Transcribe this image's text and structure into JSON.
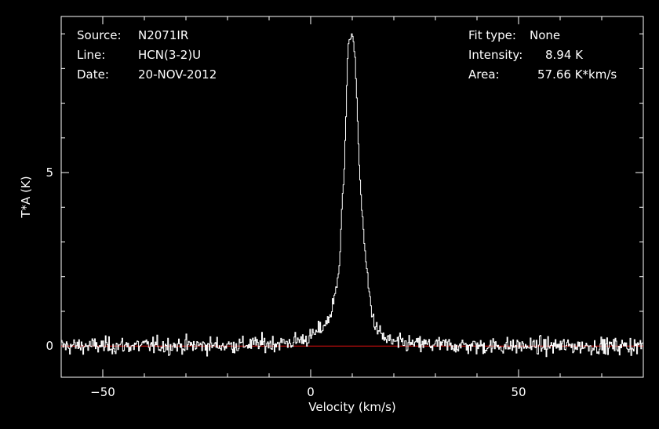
{
  "header": {
    "source_label": "Source:",
    "source_value": "N2071IR",
    "line_label": "Line:",
    "line_value": "HCN(3-2)U",
    "date_label": "Date:",
    "date_value": "20-NOV-2012",
    "fit_label": "Fit type:",
    "fit_value": "None",
    "intensity_label": "Intensity:",
    "intensity_value": "8.94 K",
    "area_label": "Area:",
    "area_value": "57.66 K*km/s"
  },
  "colors": {
    "background": "#000000",
    "spectrum": "#ffffff",
    "baseline": "#e01010",
    "axes": "#ffffff"
  },
  "chart_data": {
    "type": "line",
    "xlabel": "Velocity (km/s)",
    "ylabel": "T*A (K)",
    "xlim": [
      -60,
      80
    ],
    "ylim": [
      -0.9,
      9.5
    ],
    "x_ticks": [
      -50,
      0,
      50
    ],
    "y_ticks": [
      0,
      5
    ],
    "grid": false,
    "baseline_value": 0,
    "noise_rms": 0.12,
    "channel_width": 0.2,
    "series": [
      {
        "values_note": "",
        "x": [
          -60,
          -20,
          -5,
          0,
          2,
          4,
          5,
          6,
          7,
          7.5,
          8,
          8.5,
          9,
          9.5,
          10,
          10.5,
          11,
          11.5,
          12,
          13,
          14,
          15,
          16,
          18,
          20,
          25,
          40,
          80
        ],
        "y": [
          0,
          0.02,
          0.1,
          0.25,
          0.45,
          0.7,
          1.0,
          1.5,
          2.5,
          4.0,
          4.8,
          6.5,
          8.8,
          8.9,
          8.94,
          8.5,
          7.6,
          5.8,
          4.5,
          2.8,
          1.6,
          0.8,
          0.45,
          0.2,
          0.1,
          0.05,
          0.0,
          0.0
        ]
      }
    ]
  }
}
